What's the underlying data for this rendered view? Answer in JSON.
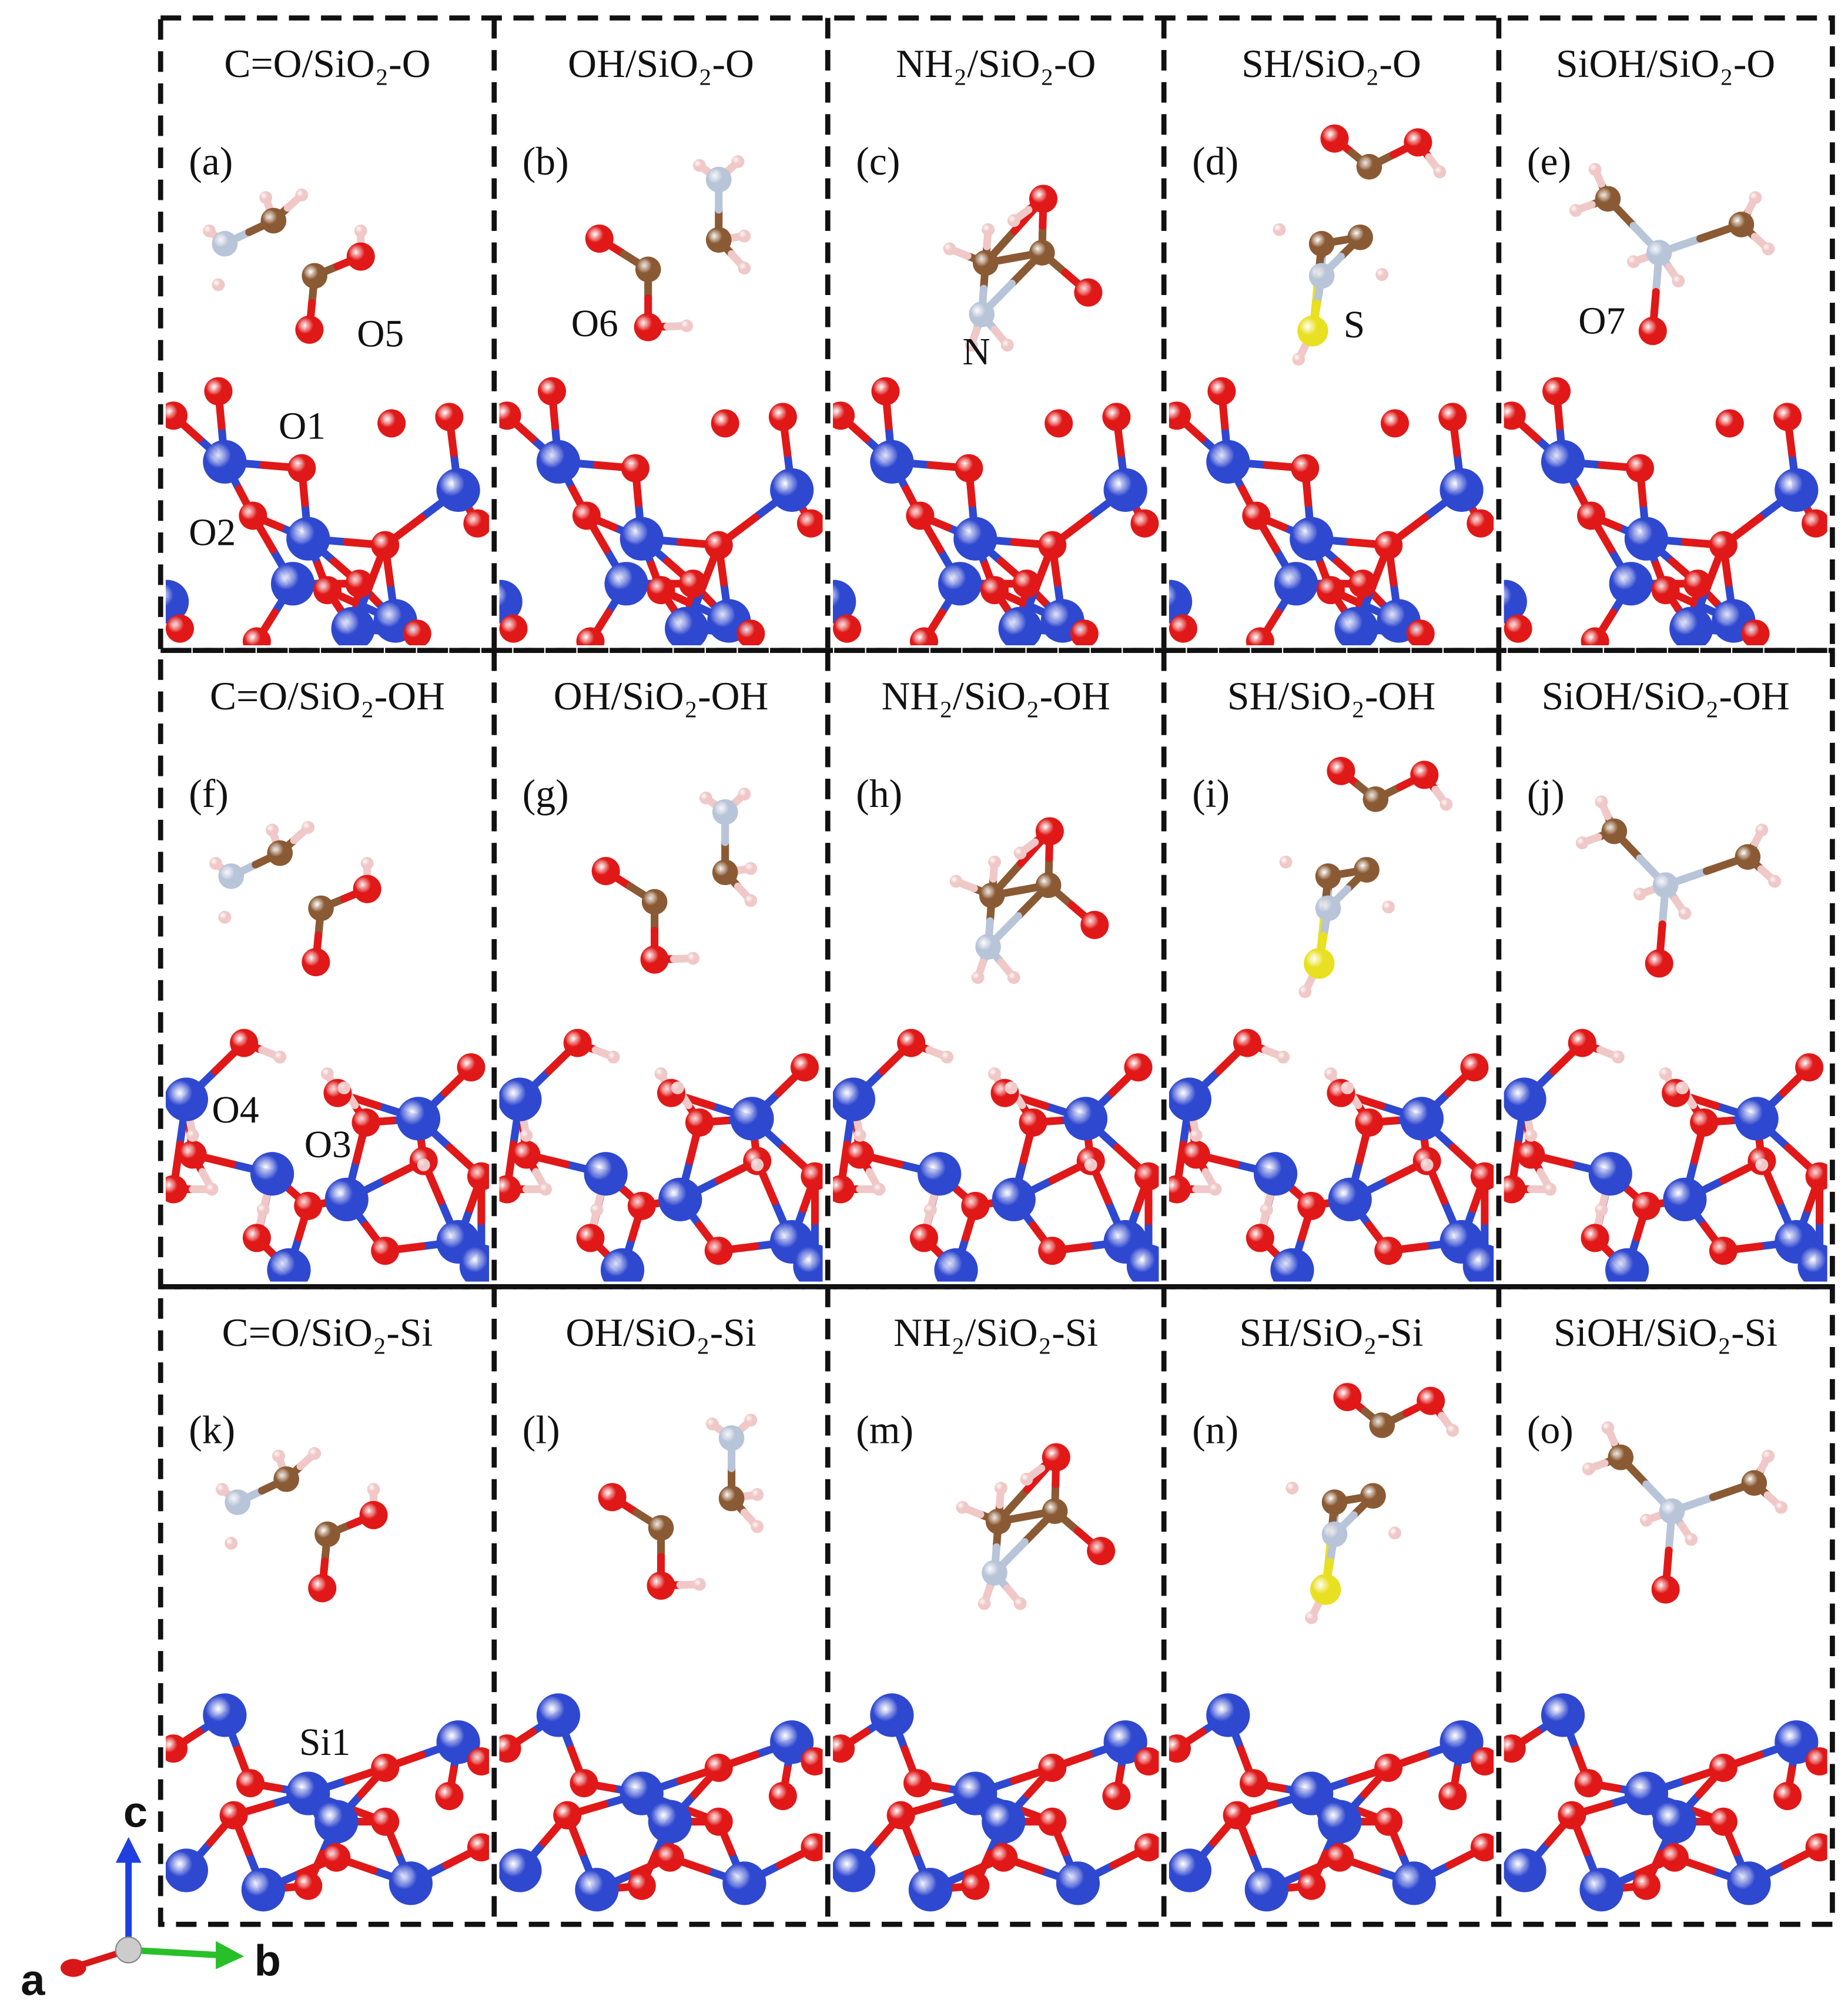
{
  "panels": [
    {
      "title": "C=O/SiO₂-O",
      "label": "(a)",
      "atoms": [
        "O5",
        "O1",
        "O2"
      ]
    },
    {
      "title": "OH/SiO₂-O",
      "label": "(b)",
      "atoms": [
        "O6"
      ]
    },
    {
      "title": "NH₂/SiO₂-O",
      "label": "(c)",
      "atoms": [
        "N"
      ]
    },
    {
      "title": "SH/SiO₂-O",
      "label": "(d)",
      "atoms": [
        "S"
      ]
    },
    {
      "title": "SiOH/SiO₂-O",
      "label": "(e)",
      "atoms": [
        "O7"
      ]
    },
    {
      "title": "C=O/SiO₂-OH",
      "label": "(f)",
      "atoms": [
        "O4",
        "O3"
      ]
    },
    {
      "title": "OH/SiO₂-OH",
      "label": "(g)",
      "atoms": []
    },
    {
      "title": "NH₂/SiO₂-OH",
      "label": "(h)",
      "atoms": []
    },
    {
      "title": "SH/SiO₂-OH",
      "label": "(i)",
      "atoms": []
    },
    {
      "title": "SiOH/SiO₂-OH",
      "label": "(j)",
      "atoms": []
    },
    {
      "title": "C=O/SiO₂-Si",
      "label": "(k)",
      "atoms": [
        "Si1"
      ]
    },
    {
      "title": "OH/SiO₂-Si",
      "label": "(l)",
      "atoms": []
    },
    {
      "title": "NH₂/SiO₂-Si",
      "label": "(m)",
      "atoms": []
    },
    {
      "title": "SH/SiO₂-Si",
      "label": "(n)",
      "atoms": []
    },
    {
      "title": "SiOH/SiO₂-Si",
      "label": "(o)",
      "atoms": []
    }
  ],
  "axes": {
    "a": "a",
    "b": "b",
    "c": "c"
  }
}
